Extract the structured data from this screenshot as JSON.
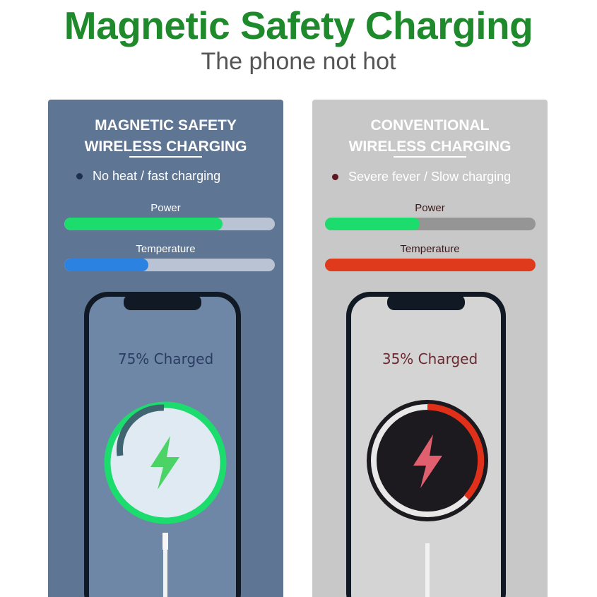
{
  "title": "Magnetic Safety Charging",
  "subtitle": "The phone not hot",
  "panels": [
    {
      "heading_line1": "MAGNETIC SAFETY",
      "heading_line2": "WIRELESS CHARGING",
      "bullet": "No heat / fast charging",
      "power_label": "Power",
      "temperature_label": "Temperature",
      "power_level": 0.75,
      "temperature_level": 0.4,
      "charge_text": "75%  Charged",
      "icon": "lightning-bolt-icon",
      "colors": {
        "power": "#1ddc6e",
        "temperature": "#2b82e0",
        "bullet_dot": "#1d2e4f",
        "charge_text": "#2a3c63"
      }
    },
    {
      "heading_line1": "CONVENTIONAL",
      "heading_line2": "WIRELESS CHARGING",
      "bullet": "Severe fever / Slow charging",
      "power_label": "Power",
      "temperature_label": "Temperature",
      "power_level": 0.45,
      "temperature_level": 1.0,
      "charge_text": "35%  Charged",
      "icon": "lightning-bolt-icon",
      "colors": {
        "power": "#1ddc6e",
        "temperature": "#e03a1c",
        "bullet_dot": "#5a1820",
        "charge_text": "#6a2830"
      }
    }
  ]
}
